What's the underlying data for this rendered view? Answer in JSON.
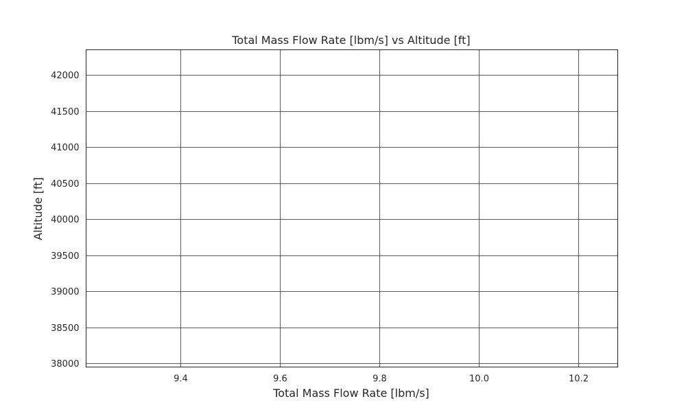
{
  "chart_data": {
    "type": "line",
    "title": "Total Mass Flow Rate [lbm/s] vs Altitude [ft]",
    "xlabel": "Total Mass Flow Rate [lbm/s]",
    "ylabel": "Altitude [ft]",
    "xlim": [
      9.21,
      10.28
    ],
    "ylim": [
      37950,
      42350
    ],
    "xticks": [
      "9.4",
      "9.6",
      "9.8",
      "10.0",
      "10.2"
    ],
    "yticks": [
      "38000",
      "38500",
      "39000",
      "39500",
      "40000",
      "40500",
      "41000",
      "41500",
      "42000"
    ],
    "grid": true,
    "series": []
  }
}
